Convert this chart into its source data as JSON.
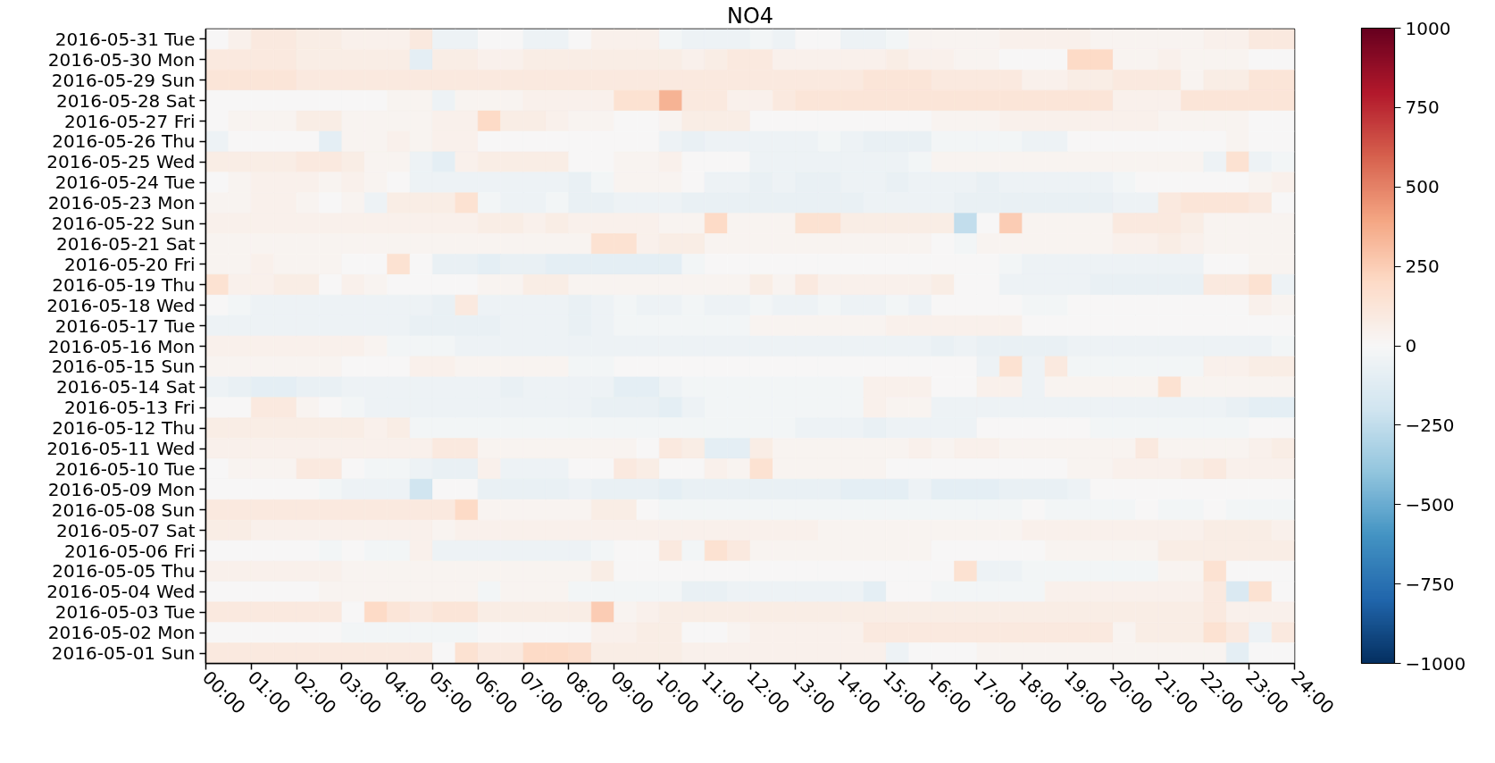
{
  "chart_data": {
    "type": "heatmap",
    "title": "NO4",
    "x": [
      0.25,
      0.75,
      1.25,
      1.75,
      2.25,
      2.75,
      3.25,
      3.75,
      4.25,
      4.75,
      5.25,
      5.75,
      6.25,
      6.75,
      7.25,
      7.75,
      8.25,
      8.75,
      9.25,
      9.75,
      10.25,
      10.75,
      11.25,
      11.75,
      12.25,
      12.75,
      13.25,
      13.75,
      14.25,
      14.75,
      15.25,
      15.75,
      16.25,
      16.75,
      17.25,
      17.75,
      18.25,
      18.75,
      19.25,
      19.75,
      20.25,
      20.75,
      21.25,
      21.75,
      22.25,
      22.75,
      23.25,
      23.75
    ],
    "y_categories": [
      "2016-05-31 Tue",
      "2016-05-30 Mon",
      "2016-05-29 Sun",
      "2016-05-28 Sat",
      "2016-05-27 Fri",
      "2016-05-26 Thu",
      "2016-05-25 Wed",
      "2016-05-24 Tue",
      "2016-05-23 Mon",
      "2016-05-22 Sun",
      "2016-05-21 Sat",
      "2016-05-20 Fri",
      "2016-05-19 Thu",
      "2016-05-18 Wed",
      "2016-05-17 Tue",
      "2016-05-16 Mon",
      "2016-05-15 Sun",
      "2016-05-14 Sat",
      "2016-05-13 Fri",
      "2016-05-12 Thu",
      "2016-05-11 Wed",
      "2016-05-10 Tue",
      "2016-05-09 Mon",
      "2016-05-08 Sun",
      "2016-05-07 Sat",
      "2016-05-06 Fri",
      "2016-05-05 Thu",
      "2016-05-04 Wed",
      "2016-05-03 Tue",
      "2016-05-02 Mon",
      "2016-05-01 Sun"
    ],
    "cells": [
      [
        0,
        50,
        100,
        100,
        75,
        75,
        50,
        50,
        50,
        100,
        -50,
        -50,
        0,
        0,
        -50,
        -50,
        0,
        50,
        50,
        50,
        -25,
        -50,
        -50,
        -50,
        -25,
        -50,
        0,
        0,
        -50,
        -50,
        -25,
        25,
        25,
        25,
        25,
        50,
        50,
        50,
        50,
        25,
        25,
        25,
        25,
        25,
        50,
        50,
        100,
        100
      ],
      [
        100,
        100,
        100,
        100,
        75,
        75,
        75,
        75,
        75,
        -100,
        75,
        75,
        50,
        50,
        75,
        75,
        75,
        75,
        75,
        75,
        75,
        50,
        75,
        100,
        100,
        50,
        50,
        50,
        50,
        50,
        75,
        50,
        50,
        25,
        25,
        0,
        0,
        0,
        200,
        200,
        25,
        25,
        50,
        25,
        25,
        25,
        0,
        0
      ],
      [
        125,
        125,
        125,
        125,
        100,
        100,
        100,
        100,
        100,
        100,
        100,
        100,
        100,
        100,
        100,
        100,
        100,
        100,
        100,
        100,
        100,
        100,
        100,
        100,
        100,
        100,
        100,
        100,
        100,
        125,
        125,
        125,
        100,
        100,
        100,
        100,
        50,
        50,
        75,
        75,
        100,
        100,
        100,
        25,
        75,
        75,
        125,
        125
      ],
      [
        0,
        0,
        0,
        0,
        0,
        0,
        0,
        0,
        25,
        25,
        -50,
        25,
        25,
        25,
        50,
        50,
        50,
        50,
        150,
        150,
        350,
        100,
        100,
        50,
        50,
        100,
        125,
        125,
        125,
        125,
        125,
        125,
        125,
        125,
        125,
        125,
        125,
        125,
        125,
        125,
        50,
        50,
        50,
        125,
        125,
        125,
        125,
        125
      ],
      [
        0,
        25,
        25,
        25,
        75,
        75,
        25,
        25,
        25,
        25,
        50,
        50,
        200,
        75,
        75,
        50,
        25,
        25,
        0,
        0,
        25,
        75,
        75,
        75,
        0,
        0,
        0,
        0,
        0,
        0,
        0,
        0,
        25,
        25,
        25,
        50,
        50,
        50,
        50,
        50,
        50,
        50,
        25,
        25,
        25,
        25,
        0,
        0
      ],
      [
        -50,
        0,
        0,
        0,
        0,
        -100,
        25,
        25,
        50,
        25,
        50,
        50,
        0,
        0,
        0,
        0,
        0,
        0,
        0,
        0,
        -50,
        -75,
        -50,
        -50,
        -50,
        -50,
        -50,
        -25,
        -50,
        -75,
        -75,
        -75,
        -25,
        -25,
        -25,
        -25,
        -50,
        -50,
        0,
        0,
        0,
        0,
        0,
        0,
        0,
        25,
        0,
        0
      ],
      [
        75,
        75,
        75,
        75,
        100,
        100,
        75,
        25,
        25,
        -50,
        -100,
        50,
        75,
        75,
        75,
        75,
        0,
        0,
        25,
        25,
        50,
        0,
        0,
        0,
        -50,
        -50,
        -50,
        -50,
        -50,
        -50,
        -50,
        -25,
        25,
        25,
        25,
        25,
        25,
        25,
        25,
        25,
        25,
        25,
        25,
        25,
        -50,
        150,
        -50,
        -25
      ],
      [
        0,
        25,
        50,
        50,
        50,
        25,
        50,
        25,
        0,
        -50,
        -50,
        -50,
        -50,
        -50,
        -50,
        -50,
        -75,
        -25,
        25,
        25,
        25,
        0,
        -50,
        -50,
        -75,
        -50,
        -75,
        -75,
        -50,
        -50,
        -75,
        -50,
        -50,
        -50,
        -75,
        -50,
        -50,
        -50,
        -50,
        -50,
        -25,
        0,
        0,
        0,
        0,
        0,
        25,
        50
      ],
      [
        25,
        25,
        50,
        50,
        25,
        0,
        25,
        -50,
        75,
        75,
        75,
        150,
        -25,
        -50,
        -50,
        -25,
        -75,
        -75,
        -50,
        -50,
        -50,
        -75,
        -75,
        -75,
        -75,
        -75,
        -75,
        -75,
        -75,
        -50,
        -50,
        -50,
        -50,
        -75,
        -75,
        -75,
        -75,
        -75,
        -75,
        -75,
        -50,
        -50,
        100,
        125,
        125,
        125,
        100,
        0
      ],
      [
        50,
        50,
        50,
        50,
        50,
        50,
        50,
        50,
        50,
        50,
        50,
        50,
        75,
        75,
        50,
        75,
        50,
        50,
        50,
        50,
        25,
        25,
        200,
        25,
        25,
        25,
        150,
        150,
        75,
        75,
        75,
        75,
        75,
        -250,
        0,
        250,
        25,
        25,
        25,
        25,
        100,
        100,
        100,
        75,
        25,
        25,
        25,
        25
      ],
      [
        25,
        25,
        25,
        25,
        25,
        25,
        25,
        25,
        25,
        25,
        25,
        25,
        25,
        25,
        25,
        25,
        25,
        150,
        150,
        50,
        75,
        75,
        25,
        25,
        25,
        25,
        25,
        25,
        25,
        25,
        25,
        25,
        0,
        -25,
        25,
        25,
        25,
        25,
        25,
        25,
        50,
        50,
        75,
        50,
        25,
        25,
        25,
        25
      ],
      [
        25,
        25,
        50,
        25,
        25,
        25,
        0,
        0,
        150,
        0,
        -75,
        -75,
        -100,
        -75,
        -75,
        -100,
        -100,
        -100,
        -100,
        -100,
        -100,
        -25,
        0,
        0,
        0,
        0,
        0,
        0,
        0,
        0,
        0,
        0,
        0,
        0,
        0,
        -25,
        -50,
        -50,
        -50,
        -50,
        -50,
        -50,
        -50,
        -50,
        0,
        0,
        25,
        25
      ],
      [
        150,
        50,
        50,
        75,
        75,
        0,
        50,
        25,
        0,
        0,
        0,
        0,
        25,
        25,
        75,
        75,
        25,
        25,
        25,
        25,
        25,
        25,
        25,
        25,
        75,
        25,
        100,
        50,
        50,
        50,
        50,
        50,
        75,
        0,
        0,
        -50,
        -50,
        -50,
        -50,
        -75,
        -75,
        -75,
        -75,
        -75,
        100,
        100,
        150,
        -50
      ],
      [
        0,
        -25,
        -50,
        -50,
        -50,
        -50,
        -50,
        -50,
        -50,
        -50,
        -75,
        100,
        -50,
        -50,
        -50,
        -50,
        -75,
        -50,
        -25,
        -50,
        -50,
        -25,
        -50,
        -50,
        -25,
        -50,
        -50,
        -25,
        -50,
        -50,
        -25,
        -50,
        0,
        0,
        0,
        0,
        -25,
        -25,
        0,
        0,
        0,
        0,
        0,
        0,
        0,
        0,
        50,
        25
      ],
      [
        -50,
        -50,
        -50,
        -50,
        -50,
        -50,
        -50,
        -50,
        -50,
        -75,
        -75,
        -75,
        -75,
        -50,
        -50,
        -50,
        -75,
        -50,
        -25,
        -25,
        -25,
        -25,
        -25,
        -25,
        25,
        25,
        25,
        25,
        25,
        25,
        50,
        50,
        50,
        50,
        50,
        50,
        0,
        0,
        0,
        0,
        0,
        0,
        0,
        0,
        0,
        0,
        0,
        0
      ],
      [
        50,
        50,
        50,
        50,
        50,
        50,
        50,
        25,
        -25,
        -25,
        -25,
        -50,
        -50,
        -50,
        -50,
        -50,
        -50,
        -50,
        -50,
        -50,
        -50,
        -50,
        -50,
        -50,
        -50,
        -50,
        -50,
        -50,
        -50,
        -50,
        -50,
        -50,
        -75,
        -50,
        -75,
        -75,
        -75,
        -75,
        -50,
        -50,
        -50,
        -50,
        -50,
        -50,
        -50,
        -50,
        -50,
        -25
      ],
      [
        25,
        25,
        25,
        25,
        25,
        25,
        0,
        0,
        0,
        50,
        50,
        25,
        25,
        25,
        25,
        25,
        -25,
        -25,
        0,
        0,
        0,
        0,
        0,
        0,
        0,
        0,
        0,
        0,
        0,
        0,
        0,
        0,
        0,
        0,
        -50,
        150,
        -50,
        100,
        -25,
        -25,
        -25,
        -25,
        -25,
        -25,
        50,
        50,
        75,
        75
      ],
      [
        -50,
        -75,
        -100,
        -100,
        -75,
        -75,
        -50,
        -50,
        -50,
        -50,
        -50,
        -50,
        -50,
        -75,
        -50,
        -50,
        -50,
        -50,
        -100,
        -100,
        -50,
        -25,
        -25,
        -25,
        -25,
        -25,
        -25,
        -25,
        -25,
        50,
        50,
        50,
        0,
        0,
        50,
        50,
        -50,
        25,
        25,
        25,
        25,
        25,
        150,
        25,
        25,
        25,
        25,
        25
      ],
      [
        0,
        0,
        100,
        100,
        25,
        0,
        -25,
        -50,
        -50,
        -50,
        -50,
        -50,
        -50,
        -50,
        -50,
        -50,
        -50,
        -75,
        -75,
        -75,
        -100,
        -50,
        -25,
        -25,
        -25,
        -25,
        -25,
        -25,
        -25,
        50,
        25,
        25,
        -50,
        -50,
        -50,
        -50,
        -50,
        -50,
        -50,
        -50,
        -50,
        -50,
        -50,
        -50,
        -50,
        -75,
        -100,
        -100
      ],
      [
        75,
        75,
        75,
        75,
        75,
        75,
        75,
        50,
        75,
        -25,
        -25,
        -25,
        -25,
        -25,
        -25,
        -25,
        -25,
        -25,
        -25,
        -25,
        -25,
        -25,
        -25,
        -25,
        -25,
        -25,
        -50,
        -50,
        -50,
        -75,
        -50,
        -50,
        -50,
        -50,
        0,
        0,
        0,
        0,
        0,
        -25,
        -25,
        -25,
        -25,
        -25,
        -25,
        -25,
        0,
        0
      ],
      [
        50,
        50,
        50,
        50,
        50,
        50,
        50,
        50,
        50,
        50,
        100,
        100,
        25,
        25,
        25,
        25,
        25,
        25,
        25,
        0,
        100,
        75,
        -100,
        -100,
        75,
        25,
        25,
        25,
        25,
        25,
        25,
        50,
        25,
        50,
        50,
        25,
        25,
        25,
        25,
        25,
        25,
        100,
        25,
        25,
        25,
        25,
        50,
        75
      ],
      [
        0,
        25,
        25,
        25,
        100,
        100,
        0,
        -25,
        -25,
        -50,
        -75,
        -75,
        50,
        -50,
        -50,
        -50,
        0,
        0,
        100,
        75,
        0,
        0,
        50,
        25,
        150,
        25,
        25,
        25,
        25,
        25,
        0,
        0,
        0,
        0,
        0,
        0,
        0,
        0,
        25,
        25,
        50,
        50,
        50,
        75,
        100,
        50,
        50,
        50
      ],
      [
        0,
        0,
        0,
        0,
        0,
        -25,
        -50,
        -50,
        -50,
        -200,
        0,
        0,
        -75,
        -75,
        -75,
        -75,
        -50,
        -75,
        -75,
        -75,
        -100,
        -75,
        -75,
        -75,
        -75,
        -75,
        -75,
        -75,
        -100,
        -100,
        -100,
        -50,
        -100,
        -100,
        -100,
        -75,
        -75,
        -75,
        -50,
        0,
        0,
        0,
        0,
        0,
        0,
        0,
        0,
        0
      ],
      [
        100,
        100,
        100,
        100,
        100,
        100,
        100,
        100,
        100,
        100,
        100,
        200,
        25,
        25,
        25,
        25,
        25,
        75,
        75,
        0,
        -25,
        -25,
        -25,
        -25,
        -25,
        -25,
        -25,
        -25,
        -25,
        -25,
        -25,
        -25,
        -25,
        -25,
        -25,
        -25,
        0,
        -25,
        -25,
        -25,
        -25,
        0,
        -25,
        -25,
        0,
        -25,
        -25,
        -25
      ],
      [
        75,
        75,
        50,
        50,
        50,
        50,
        50,
        50,
        50,
        50,
        25,
        50,
        50,
        50,
        50,
        50,
        50,
        50,
        50,
        50,
        50,
        50,
        50,
        50,
        50,
        50,
        50,
        25,
        25,
        25,
        25,
        25,
        25,
        25,
        25,
        25,
        50,
        50,
        50,
        50,
        50,
        50,
        50,
        50,
        75,
        75,
        75,
        50
      ],
      [
        0,
        0,
        0,
        0,
        0,
        -25,
        0,
        -25,
        -25,
        50,
        -50,
        -50,
        -50,
        -50,
        -50,
        -50,
        -50,
        -25,
        0,
        0,
        100,
        -25,
        150,
        100,
        25,
        25,
        25,
        25,
        25,
        25,
        25,
        25,
        0,
        0,
        0,
        0,
        0,
        25,
        25,
        25,
        25,
        25,
        75,
        75,
        75,
        75,
        75,
        75
      ],
      [
        50,
        50,
        50,
        50,
        50,
        50,
        25,
        25,
        25,
        25,
        25,
        25,
        25,
        25,
        25,
        25,
        25,
        75,
        0,
        0,
        0,
        0,
        0,
        0,
        0,
        0,
        0,
        0,
        0,
        0,
        0,
        0,
        0,
        150,
        -50,
        -50,
        -25,
        -25,
        -25,
        -25,
        -25,
        -25,
        25,
        25,
        150,
        0,
        0,
        0
      ],
      [
        0,
        0,
        0,
        0,
        0,
        25,
        25,
        25,
        25,
        25,
        25,
        25,
        -25,
        25,
        25,
        25,
        -25,
        -25,
        -25,
        -25,
        -25,
        -75,
        -75,
        -50,
        -50,
        -50,
        -50,
        -50,
        -50,
        -100,
        0,
        0,
        -25,
        -25,
        -25,
        -25,
        -25,
        50,
        50,
        50,
        50,
        50,
        50,
        50,
        100,
        -150,
        150,
        0
      ],
      [
        100,
        100,
        100,
        100,
        100,
        100,
        0,
        200,
        125,
        100,
        125,
        125,
        75,
        75,
        75,
        75,
        75,
        250,
        25,
        50,
        75,
        75,
        75,
        75,
        75,
        75,
        75,
        75,
        75,
        75,
        75,
        75,
        75,
        75,
        75,
        75,
        75,
        75,
        75,
        75,
        75,
        75,
        75,
        75,
        100,
        50,
        50,
        50
      ],
      [
        0,
        0,
        0,
        0,
        0,
        0,
        -25,
        -25,
        -25,
        -25,
        -25,
        -25,
        0,
        0,
        0,
        0,
        0,
        50,
        50,
        75,
        75,
        0,
        0,
        25,
        50,
        50,
        50,
        50,
        50,
        100,
        100,
        100,
        100,
        100,
        100,
        100,
        100,
        100,
        100,
        100,
        25,
        75,
        75,
        75,
        150,
        100,
        -50,
        100
      ],
      [
        100,
        100,
        100,
        100,
        100,
        100,
        100,
        100,
        100,
        100,
        0,
        150,
        100,
        100,
        200,
        200,
        175,
        75,
        75,
        75,
        75,
        50,
        50,
        50,
        50,
        50,
        50,
        50,
        50,
        50,
        -50,
        0,
        0,
        0,
        25,
        25,
        25,
        25,
        25,
        25,
        25,
        25,
        25,
        25,
        25,
        -100,
        0,
        0
      ]
    ],
    "xlim": [
      0,
      24
    ],
    "xticks": [
      {
        "value": 0,
        "label": "00:00"
      },
      {
        "value": 1,
        "label": "01:00"
      },
      {
        "value": 2,
        "label": "02:00"
      },
      {
        "value": 3,
        "label": "03:00"
      },
      {
        "value": 4,
        "label": "04:00"
      },
      {
        "value": 5,
        "label": "05:00"
      },
      {
        "value": 6,
        "label": "06:00"
      },
      {
        "value": 7,
        "label": "07:00"
      },
      {
        "value": 8,
        "label": "08:00"
      },
      {
        "value": 9,
        "label": "09:00"
      },
      {
        "value": 10,
        "label": "10:00"
      },
      {
        "value": 11,
        "label": "11:00"
      },
      {
        "value": 12,
        "label": "12:00"
      },
      {
        "value": 13,
        "label": "13:00"
      },
      {
        "value": 14,
        "label": "14:00"
      },
      {
        "value": 15,
        "label": "15:00"
      },
      {
        "value": 16,
        "label": "16:00"
      },
      {
        "value": 17,
        "label": "17:00"
      },
      {
        "value": 18,
        "label": "18:00"
      },
      {
        "value": 19,
        "label": "19:00"
      },
      {
        "value": 20,
        "label": "20:00"
      },
      {
        "value": 21,
        "label": "21:00"
      },
      {
        "value": 22,
        "label": "22:00"
      },
      {
        "value": 23,
        "label": "23:00"
      },
      {
        "value": 24,
        "label": "24:00"
      }
    ],
    "clim": [
      -1000,
      1000
    ],
    "cticks": [
      {
        "value": -1000,
        "label": "−1000"
      },
      {
        "value": -750,
        "label": "−750"
      },
      {
        "value": -500,
        "label": "−500"
      },
      {
        "value": -250,
        "label": "−250"
      },
      0,
      250,
      500,
      750,
      1000
    ]
  }
}
